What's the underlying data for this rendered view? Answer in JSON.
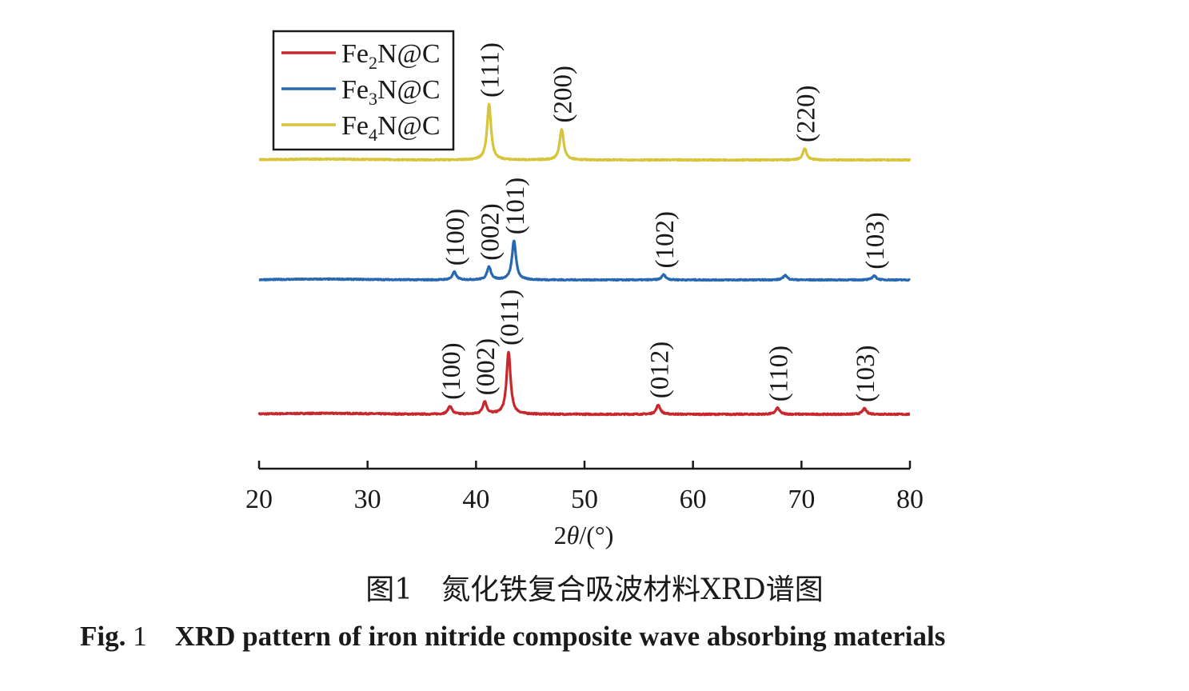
{
  "chart_data": {
    "type": "line",
    "xlabel": "2θ/(°)",
    "xlim": [
      20,
      80
    ],
    "xticks": [
      20,
      30,
      40,
      50,
      60,
      70,
      80
    ],
    "y_axis_shown": false,
    "grid": false,
    "legend_placement": "top-left",
    "series": [
      {
        "name": "Fe₂N@C",
        "color": "#c8282d",
        "peaks": [
          {
            "x": 37.6,
            "label": "(100)",
            "intensity": 0.13
          },
          {
            "x": 40.8,
            "label": "(002)",
            "intensity": 0.2
          },
          {
            "x": 43.0,
            "label": "(011)",
            "intensity": 1.0
          },
          {
            "x": 56.8,
            "label": "(012)",
            "intensity": 0.15
          },
          {
            "x": 67.8,
            "label": "(110)",
            "intensity": 0.1
          },
          {
            "x": 75.8,
            "label": "(103)",
            "intensity": 0.09
          }
        ]
      },
      {
        "name": "Fe₃N@C",
        "color": "#2868b0",
        "peaks": [
          {
            "x": 38.0,
            "label": "(100)",
            "intensity": 0.15
          },
          {
            "x": 41.2,
            "label": "(002)",
            "intensity": 0.25
          },
          {
            "x": 43.5,
            "label": "(101)",
            "intensity": 0.75
          },
          {
            "x": 57.3,
            "label": "(102)",
            "intensity": 0.1
          },
          {
            "x": 68.5,
            "label": "",
            "intensity": 0.09
          },
          {
            "x": 76.7,
            "label": "(103)",
            "intensity": 0.08
          }
        ]
      },
      {
        "name": "Fe₄N@C",
        "color": "#d8c43a",
        "peaks": [
          {
            "x": 41.2,
            "label": "(111)",
            "intensity": 1.0
          },
          {
            "x": 47.9,
            "label": "(200)",
            "intensity": 0.55
          },
          {
            "x": 70.3,
            "label": "(220)",
            "intensity": 0.2
          }
        ]
      }
    ]
  },
  "legend": {
    "entries": [
      {
        "base": "Fe",
        "sub": "2",
        "rest": "N@C",
        "color": "#c8282d"
      },
      {
        "base": "Fe",
        "sub": "3",
        "rest": "N@C",
        "color": "#2868b0"
      },
      {
        "base": "Fe",
        "sub": "4",
        "rest": "N@C",
        "color": "#d8c43a"
      }
    ]
  },
  "axis": {
    "title_prefix": "2",
    "title_theta": "θ",
    "title_suffix": "/(°)"
  },
  "caption": {
    "cn": "图1　氮化铁复合吸波材料XRD谱图",
    "en_fig": "Fig.",
    "en_num": "1",
    "en_title": "XRD pattern of iron nitride composite wave absorbing materials"
  }
}
